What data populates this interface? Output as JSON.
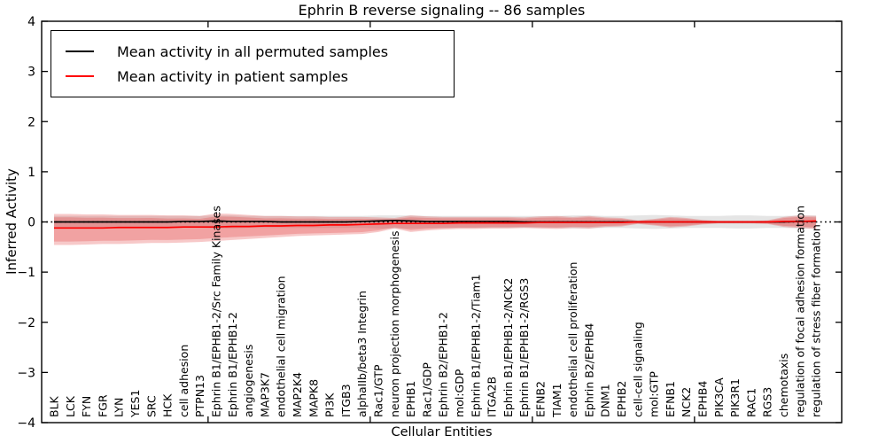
{
  "figure": {
    "title": "Ephrin B reverse signaling -- 86 samples",
    "xlabel": "Cellular Entities",
    "ylabel": "Inferred Activity"
  },
  "legend": {
    "entries": [
      {
        "label": "Mean activity in all permuted samples",
        "color": "#000000"
      },
      {
        "label": "Mean activity in patient samples",
        "color": "#ff0000"
      }
    ]
  },
  "chart_data": {
    "type": "line",
    "title": "Ephrin B reverse signaling -- 86 samples",
    "xlabel": "Cellular Entities",
    "ylabel": "Inferred Activity",
    "ylim": [
      -4,
      4
    ],
    "grid": false,
    "legend_position": "upper left",
    "yticks": [
      {
        "value": 4,
        "label": "4"
      },
      {
        "value": 3,
        "label": "3"
      },
      {
        "value": 2,
        "label": "2"
      },
      {
        "value": 1,
        "label": "1"
      },
      {
        "value": 0,
        "label": "0"
      },
      {
        "value": -1,
        "label": "−1"
      },
      {
        "value": -2,
        "label": "−2"
      },
      {
        "value": -3,
        "label": "−3"
      },
      {
        "value": -4,
        "label": "−4"
      }
    ],
    "categories": [
      "BLK",
      "LCK",
      "FYN",
      "FGR",
      "LYN",
      "YES1",
      "SRC",
      "HCK",
      "cell adhesion",
      "PTPN13",
      "Ephrin B1/EPHB1-2/Src Family Kinases",
      "Ephrin B1/EPHB1-2",
      "angiogenesis",
      "MAP3K7",
      "endothelial cell migration",
      "MAP2K4",
      "MAPK8",
      "PI3K",
      "ITGB3",
      "alphaIIb/beta3 Integrin",
      "Rac1/GTP",
      "neuron projection morphogenesis",
      "EPHB1",
      "Rac1/GDP",
      "Ephrin B2/EPHB1-2",
      "mol:GDP",
      "Ephrin B1/EPHB1-2/Tiam1",
      "ITGA2B",
      "Ephrin B1/EPHB1-2/NCK2",
      "Ephrin B1/EPHB1-2/RGS3",
      "EFNB2",
      "TIAM1",
      "endothelial cell proliferation",
      "Ephrin B2/EPHB4",
      "DNM1",
      "EPHB2",
      "cell-cell signaling",
      "mol:GTP",
      "EFNB1",
      "NCK2",
      "EPHB4",
      "PIK3CA",
      "PIK3R1",
      "RAC1",
      "RGS3",
      "chemotaxis",
      "regulation of focal adhesion formation",
      "regulation of stress fiber formation"
    ],
    "zero_line": {
      "y": 0,
      "style": "dotted",
      "color": "#000000"
    },
    "series": [
      {
        "name": "permuted std band",
        "type": "band",
        "color": "rgba(0,0,0,0.10)",
        "layered": false,
        "upper": [
          0.12,
          0.12,
          0.12,
          0.12,
          0.12,
          0.12,
          0.12,
          0.12,
          0.12,
          0.12,
          0.13,
          0.13,
          0.12,
          0.12,
          0.12,
          0.12,
          0.12,
          0.12,
          0.12,
          0.12,
          0.13,
          0.13,
          0.13,
          0.12,
          0.12,
          0.12,
          0.12,
          0.12,
          0.12,
          0.12,
          0.12,
          0.12,
          0.13,
          0.13,
          0.12,
          0.12,
          0.13,
          0.14,
          0.13,
          0.12,
          0.12,
          0.12,
          0.13,
          0.13,
          0.12,
          0.12,
          0.13,
          0.13
        ],
        "lower": [
          -0.12,
          -0.12,
          -0.12,
          -0.12,
          -0.12,
          -0.12,
          -0.12,
          -0.12,
          -0.12,
          -0.12,
          -0.13,
          -0.13,
          -0.12,
          -0.12,
          -0.12,
          -0.12,
          -0.12,
          -0.12,
          -0.12,
          -0.12,
          -0.13,
          -0.13,
          -0.13,
          -0.12,
          -0.12,
          -0.12,
          -0.12,
          -0.12,
          -0.12,
          -0.12,
          -0.12,
          -0.12,
          -0.13,
          -0.13,
          -0.12,
          -0.12,
          -0.13,
          -0.14,
          -0.13,
          -0.12,
          -0.12,
          -0.12,
          -0.13,
          -0.13,
          -0.12,
          -0.12,
          -0.13,
          -0.13
        ]
      },
      {
        "name": "patient std band",
        "type": "band",
        "color": "rgba(228,60,60,0.28)",
        "layered": true,
        "upper": [
          0.16,
          0.16,
          0.15,
          0.15,
          0.14,
          0.14,
          0.14,
          0.13,
          0.13,
          0.12,
          0.17,
          0.16,
          0.14,
          0.12,
          0.12,
          0.11,
          0.11,
          0.1,
          0.1,
          0.1,
          0.09,
          0.08,
          0.13,
          0.11,
          0.1,
          0.1,
          0.1,
          0.1,
          0.1,
          0.09,
          0.11,
          0.12,
          0.1,
          0.12,
          0.09,
          0.08,
          0.03,
          0.06,
          0.1,
          0.08,
          0.04,
          0.02,
          0.02,
          0.02,
          0.03,
          0.1,
          0.13,
          0.12
        ],
        "lower": [
          -0.46,
          -0.46,
          -0.45,
          -0.44,
          -0.44,
          -0.43,
          -0.42,
          -0.42,
          -0.41,
          -0.4,
          -0.38,
          -0.36,
          -0.34,
          -0.32,
          -0.3,
          -0.28,
          -0.27,
          -0.26,
          -0.25,
          -0.24,
          -0.2,
          -0.13,
          -0.2,
          -0.17,
          -0.15,
          -0.14,
          -0.14,
          -0.13,
          -0.13,
          -0.12,
          -0.13,
          -0.14,
          -0.12,
          -0.13,
          -0.1,
          -0.09,
          -0.04,
          -0.07,
          -0.11,
          -0.09,
          -0.05,
          -0.03,
          -0.03,
          -0.03,
          -0.04,
          -0.1,
          -0.12,
          -0.14
        ]
      },
      {
        "name": "Mean activity in all permuted samples",
        "type": "line",
        "color": "#000000",
        "values": [
          0,
          0,
          0,
          0,
          0,
          0,
          0,
          0,
          0.01,
          0.01,
          0.02,
          0.01,
          0.01,
          0.01,
          0,
          0,
          0,
          0,
          0,
          0.01,
          0.02,
          0.03,
          0.02,
          0.01,
          0.01,
          0.01,
          0.01,
          0.01,
          0.01,
          0,
          0,
          0,
          0,
          0,
          0,
          0,
          0,
          0,
          0,
          0,
          0,
          0,
          0,
          0,
          0,
          0,
          0.01,
          0.01
        ]
      },
      {
        "name": "Mean activity in patient samples",
        "type": "line",
        "color": "#ff0000",
        "values": [
          -0.12,
          -0.12,
          -0.12,
          -0.12,
          -0.11,
          -0.11,
          -0.11,
          -0.11,
          -0.1,
          -0.1,
          -0.1,
          -0.09,
          -0.09,
          -0.08,
          -0.08,
          -0.07,
          -0.07,
          -0.06,
          -0.06,
          -0.05,
          -0.04,
          -0.03,
          -0.03,
          -0.03,
          -0.03,
          -0.02,
          -0.02,
          -0.02,
          -0.02,
          -0.02,
          -0.01,
          -0.01,
          -0.01,
          -0.01,
          -0.01,
          -0.01,
          0,
          0,
          0,
          0,
          0,
          0,
          0,
          0,
          0,
          0.01,
          0.01,
          0.02
        ]
      }
    ]
  }
}
